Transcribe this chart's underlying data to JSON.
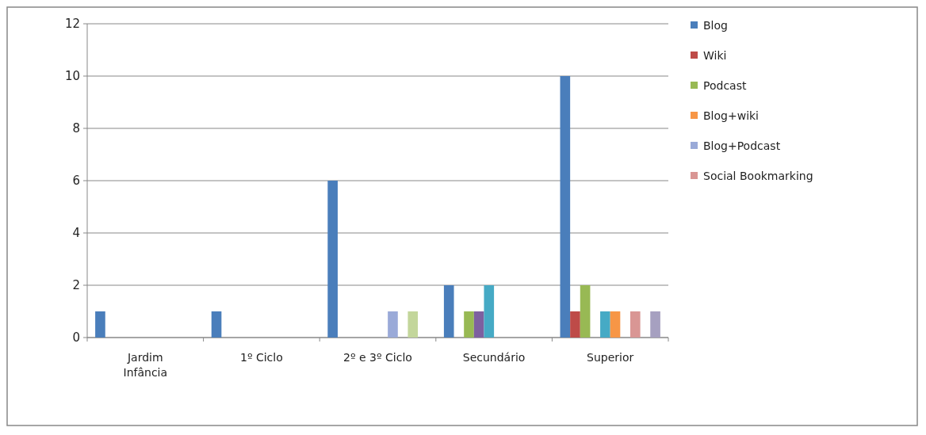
{
  "chart_data": {
    "type": "bar",
    "categories": [
      "Jardim Infância",
      "1º Ciclo",
      "2º e 3º Ciclo",
      "Secundário",
      "Superior"
    ],
    "series": [
      {
        "name": "Blog",
        "color": "#4a7ebb",
        "values": [
          1,
          1,
          6,
          2,
          10
        ]
      },
      {
        "name": "Wiki",
        "color": "#be4b48",
        "values": [
          0,
          0,
          0,
          0,
          1
        ]
      },
      {
        "name": "Podcast",
        "color": "#98b954",
        "values": [
          0,
          0,
          0,
          1,
          2
        ]
      },
      {
        "color": "#7d60a0",
        "values": [
          0,
          0,
          0,
          1,
          0
        ]
      },
      {
        "color": "#46aac5",
        "values": [
          0,
          0,
          0,
          2,
          1
        ]
      },
      {
        "name": "Blog+wiki",
        "color": "#f79646",
        "values": [
          0,
          0,
          0,
          0,
          1
        ]
      },
      {
        "name": "Blog+Podcast",
        "color": "#9aaad8",
        "values": [
          0,
          0,
          1,
          0,
          0
        ]
      },
      {
        "name": "Social Bookmarking",
        "color": "#d99694",
        "values": [
          0,
          0,
          0,
          0,
          1
        ]
      },
      {
        "color": "#c3d69b",
        "values": [
          0,
          0,
          1,
          0,
          0
        ]
      },
      {
        "color": "#a6a0c0",
        "values": [
          0,
          0,
          0,
          0,
          1
        ]
      }
    ],
    "ylim": [
      0,
      12
    ],
    "yticks": [
      0,
      2,
      4,
      6,
      8,
      10,
      12
    ],
    "grid": "y",
    "legend": "right"
  }
}
